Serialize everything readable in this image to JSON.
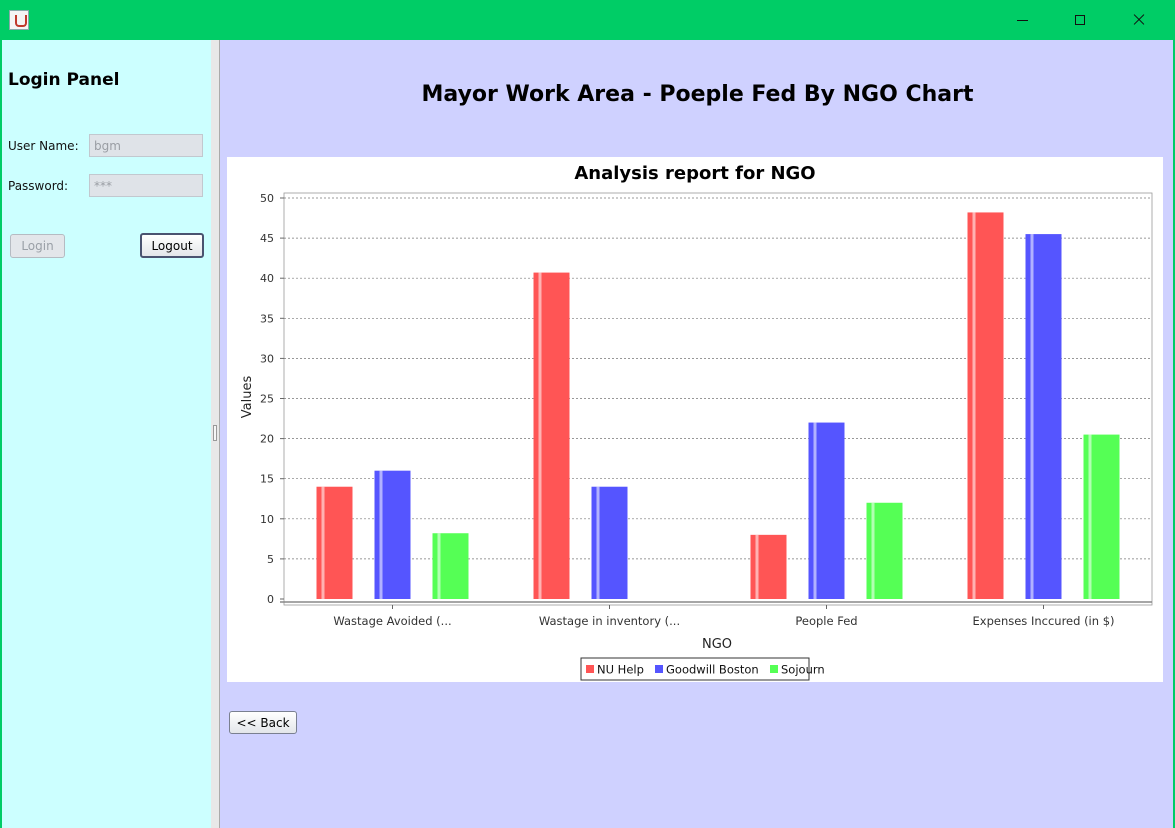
{
  "window": {
    "title": ""
  },
  "login": {
    "title": "Login Panel",
    "username_label": "User Name:",
    "username_value": "bgm",
    "password_label": "Password:",
    "password_value": "***",
    "login_label": "Login",
    "logout_label": "Logout"
  },
  "main": {
    "title": "Mayor Work Area - Poeple Fed By NGO Chart",
    "back_label": "<< Back"
  },
  "chart_data": {
    "type": "bar",
    "title": "Analysis report for NGO",
    "xlabel": "NGO",
    "ylabel": "Values",
    "ylim": [
      0,
      50
    ],
    "yticks": [
      0,
      5,
      10,
      15,
      20,
      25,
      30,
      35,
      40,
      45,
      50
    ],
    "categories": [
      "Wastage Avoided (...",
      "Wastage in inventory (...",
      "People Fed",
      "Expenses Inccured (in $)"
    ],
    "series": [
      {
        "name": "NU Help",
        "color": "#ff5555",
        "values": [
          14,
          40.7,
          8,
          48.2
        ]
      },
      {
        "name": "Goodwill Boston",
        "color": "#5555ff",
        "values": [
          16,
          14,
          22,
          45.5
        ]
      },
      {
        "name": "Sojourn",
        "color": "#55ff55",
        "values": [
          8.2,
          0,
          12,
          20.5
        ]
      }
    ],
    "grid": true,
    "legend_position": "bottom"
  }
}
